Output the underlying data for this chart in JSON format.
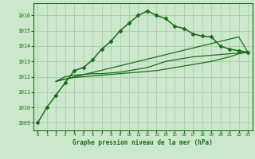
{
  "background_color": "#cce8cc",
  "grid_color": "#aaccaa",
  "line_color": "#1a6b1a",
  "title": "Graphe pression niveau de la mer (hPa)",
  "xlim": [
    -0.5,
    23.5
  ],
  "ylim": [
    1008.5,
    1016.8
  ],
  "yticks": [
    1009,
    1010,
    1011,
    1012,
    1013,
    1014,
    1015,
    1016
  ],
  "xticks": [
    0,
    1,
    2,
    3,
    4,
    5,
    6,
    7,
    8,
    9,
    10,
    11,
    12,
    13,
    14,
    15,
    16,
    17,
    18,
    19,
    20,
    21,
    22,
    23
  ],
  "series": [
    {
      "x": [
        0,
        1,
        2,
        3,
        4,
        5,
        6,
        7,
        8,
        9,
        10,
        11,
        12,
        13,
        14,
        15,
        16,
        17,
        18,
        19,
        20,
        21,
        22,
        23
      ],
      "y": [
        1009.0,
        1010.0,
        1010.8,
        1011.6,
        1012.4,
        1012.6,
        1013.1,
        1013.8,
        1014.3,
        1015.0,
        1015.5,
        1016.0,
        1016.3,
        1016.0,
        1015.8,
        1015.3,
        1015.15,
        1014.8,
        1014.65,
        1014.6,
        1014.0,
        1013.8,
        1013.7,
        1013.6
      ],
      "marker": "D",
      "markersize": 2.5,
      "linewidth": 1.1,
      "linestyle": "-"
    },
    {
      "x": [
        2,
        3,
        4,
        5,
        6,
        7,
        8,
        9,
        10,
        11,
        12,
        13,
        14,
        15,
        16,
        17,
        18,
        19,
        20,
        21,
        22,
        23
      ],
      "y": [
        1011.7,
        1012.0,
        1012.1,
        1012.15,
        1012.2,
        1012.2,
        1012.25,
        1012.3,
        1012.4,
        1012.5,
        1012.6,
        1012.8,
        1013.0,
        1013.1,
        1013.2,
        1013.3,
        1013.35,
        1013.4,
        1013.45,
        1013.5,
        1013.55,
        1013.6
      ],
      "marker": null,
      "markersize": 0,
      "linewidth": 0.9,
      "linestyle": "-"
    },
    {
      "x": [
        2,
        3,
        4,
        5,
        6,
        7,
        8,
        9,
        10,
        11,
        12,
        13,
        14,
        15,
        16,
        17,
        18,
        19,
        20,
        21,
        22,
        23
      ],
      "y": [
        1011.7,
        1011.85,
        1011.95,
        1012.0,
        1012.05,
        1012.1,
        1012.15,
        1012.2,
        1012.25,
        1012.3,
        1012.35,
        1012.4,
        1012.5,
        1012.6,
        1012.7,
        1012.8,
        1012.9,
        1013.0,
        1013.15,
        1013.3,
        1013.5,
        1013.6
      ],
      "marker": null,
      "markersize": 0,
      "linewidth": 0.9,
      "linestyle": "-"
    },
    {
      "x": [
        2,
        22,
        23
      ],
      "y": [
        1011.7,
        1014.6,
        1013.6
      ],
      "marker": null,
      "markersize": 0,
      "linewidth": 0.9,
      "linestyle": "-"
    }
  ]
}
